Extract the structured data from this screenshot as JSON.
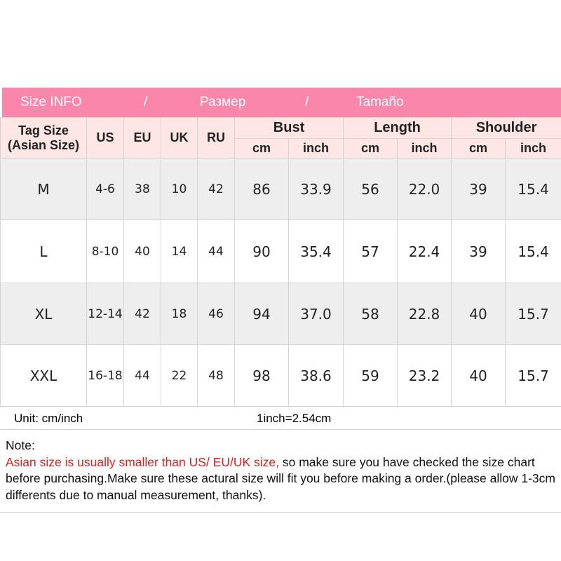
{
  "title": {
    "en": "Size INFO",
    "sep": "/",
    "ru": "Размер",
    "es": "Tamaño"
  },
  "headers": {
    "tag": "Tag Size",
    "tag_sub": "(Asian Size)",
    "us": "US",
    "eu": "EU",
    "uk": "UK",
    "ru": "RU",
    "bust": "Bust",
    "length": "Length",
    "shoulder": "Shoulder",
    "cm": "cm",
    "inch": "inch"
  },
  "rows": [
    [
      "M",
      "4-6",
      "38",
      "10",
      "42",
      "86",
      "33.9",
      "56",
      "22.0",
      "39",
      "15.4"
    ],
    [
      "L",
      "8-10",
      "40",
      "14",
      "44",
      "90",
      "35.4",
      "57",
      "22.4",
      "39",
      "15.4"
    ],
    [
      "XL",
      "12-14",
      "42",
      "18",
      "46",
      "94",
      "37.0",
      "58",
      "22.8",
      "40",
      "15.7"
    ],
    [
      "XXL",
      "16-18",
      "44",
      "22",
      "48",
      "98",
      "38.6",
      "59",
      "23.2",
      "40",
      "15.7"
    ]
  ],
  "unit": "Unit: cm/inch",
  "conversion": "1inch=2.54cm",
  "note": {
    "label": "Note:",
    "warning": "Asian size is usually smaller than US/ EU/UK size,",
    "text": " so make sure you have checked the size chart before purchasing.Make sure these actural size will fit you before making a order.(please allow 1-3cm differents due to manual measurement, thanks)."
  },
  "colors": {
    "title_bg": "#fb86ab",
    "header_bg": "#fde6e4",
    "warning": "#e0201c"
  }
}
